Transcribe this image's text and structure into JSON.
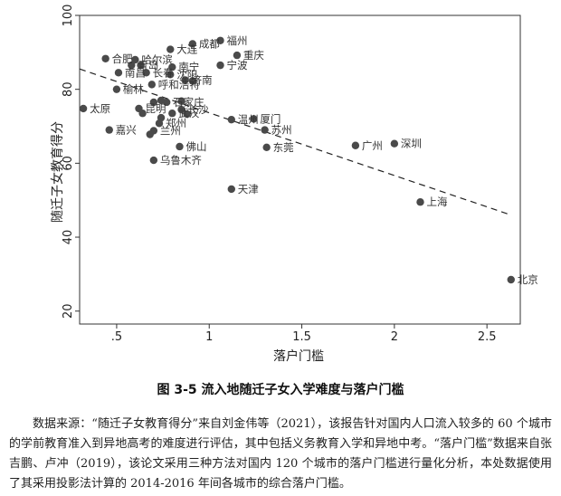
{
  "chart_data": {
    "type": "scatter",
    "xlabel": "落户门槛",
    "ylabel": "随迁子女教育得分",
    "xlim": [
      0.3,
      2.68
    ],
    "ylim": [
      16.5,
      100
    ],
    "x_ticks": [
      0.5,
      1,
      1.5,
      2,
      2.5
    ],
    "x_tick_labels": [
      ".5",
      "1",
      "1.5",
      "2",
      "2.5"
    ],
    "y_ticks": [
      20,
      40,
      60,
      80,
      100
    ],
    "y_tick_labels": [
      "20",
      "40",
      "60",
      "80",
      "100"
    ],
    "grid": false,
    "fit_line": {
      "style": "dashed",
      "x": [
        0.3,
        2.63
      ],
      "y": [
        85.5,
        46
      ]
    },
    "points": [
      {
        "label": "福州",
        "x": 1.06,
        "y": 93.2
      },
      {
        "label": "成都",
        "x": 0.91,
        "y": 92.3
      },
      {
        "label": "大连",
        "x": 0.79,
        "y": 90.8
      },
      {
        "label": "重庆",
        "x": 1.15,
        "y": 89.2
      },
      {
        "label": "合肥",
        "x": 0.44,
        "y": 88.3
      },
      {
        "label": "哈尔滨",
        "x": 0.6,
        "y": 88.0
      },
      {
        "label": "宁波",
        "x": 1.06,
        "y": 86.5
      },
      {
        "label": "南宁",
        "x": 0.8,
        "y": 86.0
      },
      {
        "label": "青岛",
        "x": 0.58,
        "y": 86.5
      },
      {
        "label": "南昌",
        "x": 0.51,
        "y": 84.5
      },
      {
        "label": "长春",
        "x": 0.66,
        "y": 84.5
      },
      {
        "label": "沈阳",
        "x": 0.79,
        "y": 84.0
      },
      {
        "label": "济南",
        "x": 0.87,
        "y": 82.5
      },
      {
        "label": "呼和浩特",
        "x": 0.69,
        "y": 81.3
      },
      {
        "label": "榆林",
        "x": 0.5,
        "y": 80.0
      },
      {
        "label": "石家庄",
        "x": 0.77,
        "y": 76.5
      },
      {
        "label": "太原",
        "x": 0.32,
        "y": 74.8
      },
      {
        "label": "昆明",
        "x": 0.62,
        "y": 74.8
      },
      {
        "label": "武汉",
        "x": 0.8,
        "y": 73.5
      },
      {
        "label": "长沙",
        "x": 0.85,
        "y": 74.5
      },
      {
        "label": "温州",
        "x": 1.12,
        "y": 71.8
      },
      {
        "label": "厦门",
        "x": 1.24,
        "y": 72.0
      },
      {
        "label": "郑州",
        "x": 0.73,
        "y": 70.8
      },
      {
        "label": "兰州",
        "x": 0.7,
        "y": 68.8
      },
      {
        "label": "嘉兴",
        "x": 0.46,
        "y": 69.0
      },
      {
        "label": "苏州",
        "x": 1.3,
        "y": 69.0
      },
      {
        "label": "东莞",
        "x": 1.31,
        "y": 64.3
      },
      {
        "label": "广州",
        "x": 1.79,
        "y": 64.8
      },
      {
        "label": "深圳",
        "x": 2.0,
        "y": 65.3
      },
      {
        "label": "佛山",
        "x": 0.84,
        "y": 64.5
      },
      {
        "label": "乌鲁木齐",
        "x": 0.7,
        "y": 60.8
      },
      {
        "label": "天津",
        "x": 1.12,
        "y": 53.0
      },
      {
        "label": "上海",
        "x": 2.14,
        "y": 49.5
      },
      {
        "label": "北京",
        "x": 2.63,
        "y": 28.5
      },
      {
        "label": "",
        "x": 0.63,
        "y": 86.5
      },
      {
        "label": "",
        "x": 0.7,
        "y": 76.5
      },
      {
        "label": "",
        "x": 0.74,
        "y": 77.0
      },
      {
        "label": "",
        "x": 0.64,
        "y": 73.5
      },
      {
        "label": "",
        "x": 0.88,
        "y": 73.3
      },
      {
        "label": "",
        "x": 0.68,
        "y": 67.8
      },
      {
        "label": "",
        "x": 0.85,
        "y": 76.8
      },
      {
        "label": "",
        "x": 0.91,
        "y": 82.3
      },
      {
        "label": "",
        "x": 0.74,
        "y": 72.3
      }
    ]
  },
  "figure": {
    "caption": "图 3-5  流入地随迁子女入学难度与落户门槛",
    "note": "数据来源：“随迁子女教育得分”来自刘金伟等（2021），该报告针对国内人口流入较多的 60 个城市的学前教育准入到异地高考的难度进行评估，其中包括义务教育入学和异地中考。“落户门槛”数据来自张吉鹏、卢冲（2019），该论文采用三种方法对国内 120 个城市的落户门槛进行量化分析，本处数据使用了其采用投影法计算的 2014-2016 年间各城市的综合落户门槛。"
  }
}
